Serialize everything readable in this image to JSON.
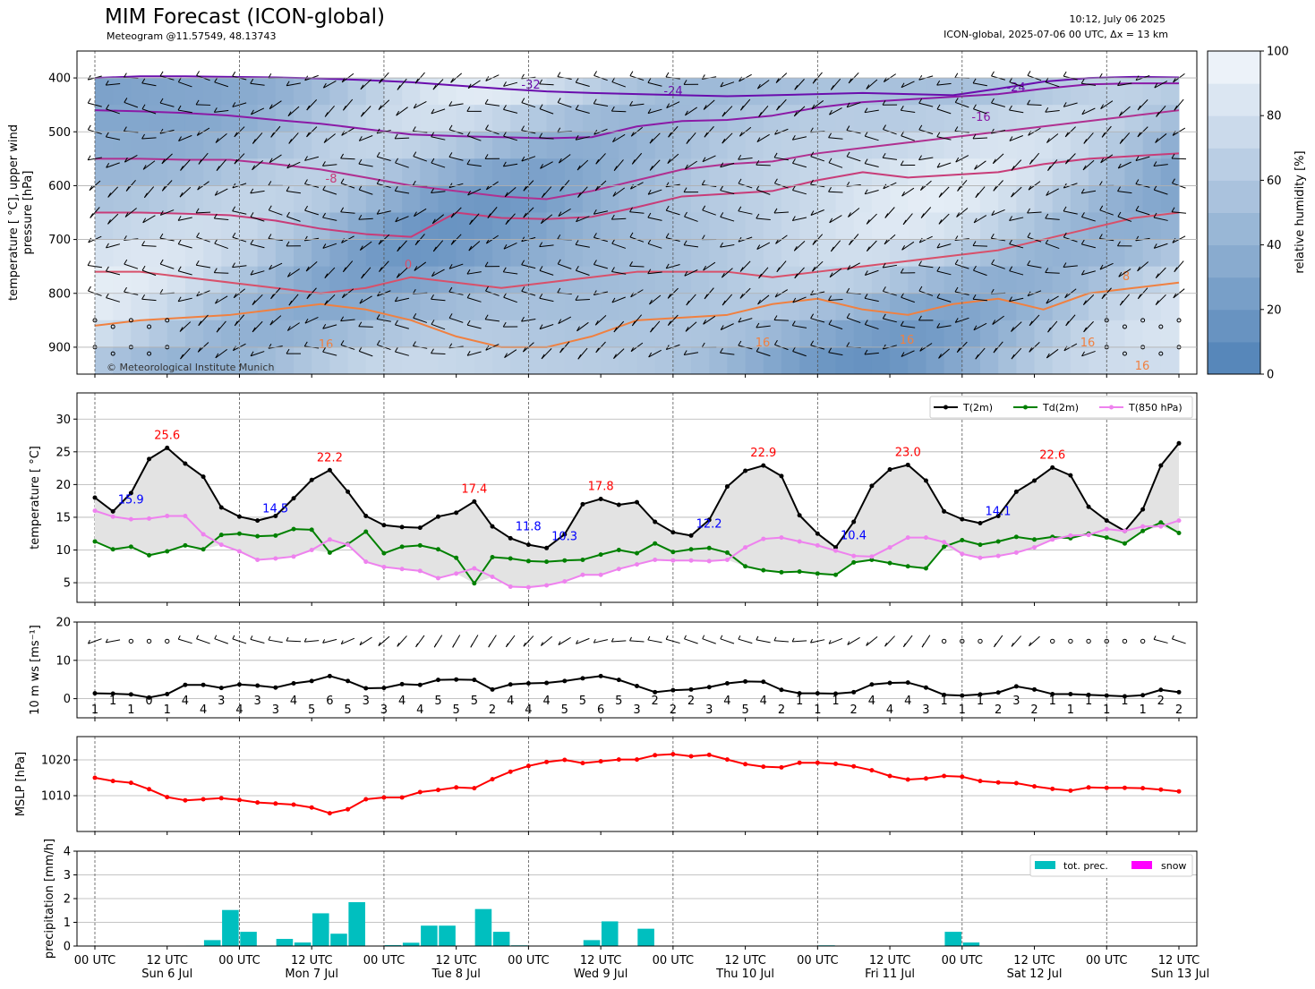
{
  "header": {
    "title": "MIM Forecast (ICON-global)",
    "subtitle": "Meteogram @11.57549, 48.13743",
    "run_time": "10:12, July 06 2025",
    "model_info": "ICON-global, 2025-07-06 00 UTC, Δx = 13 km",
    "copyright": "© Meteorological Institute Munich"
  },
  "colors": {
    "t2m": "#000000",
    "td2m": "#008000",
    "t850": "#ee82ee",
    "max_label": "#ff0000",
    "min_label": "#0000ff",
    "mslp": "#ff0000",
    "precip": "#00bfbf",
    "snow": "#ff00ff",
    "humidity_low": "#4f81b7",
    "humidity_high": "#f4f8fc",
    "shading": "#e3e3e3"
  },
  "x_axis": {
    "tick_labels": [
      "00 UTC",
      "12 UTC",
      "00 UTC",
      "12 UTC",
      "00 UTC",
      "12 UTC",
      "00 UTC",
      "12 UTC",
      "00 UTC",
      "12 UTC",
      "00 UTC",
      "12 UTC",
      "00 UTC",
      "12 UTC",
      "00 UTC",
      "12 UTC"
    ],
    "day_labels": [
      "Sun 6 Jul",
      "Mon 7 Jul",
      "Tue 8 Jul",
      "Wed 9 Jul",
      "Thu 10 Jul",
      "Fri 11 Jul",
      "Sat 12 Jul",
      "Sun 13 Jul"
    ],
    "range_hours": [
      0,
      180
    ],
    "step_hours": 3
  },
  "chart_data": [
    {
      "type": "heatmap",
      "name_note": "relative humidity with isotherms and upper wind barbs",
      "ylabel": "temperature [$^\\circ$C], upper wind\npressure [hPa]",
      "ylabel_lines": [
        "temperature [ °C], upper wind",
        "pressure [hPa]"
      ],
      "ylim": [
        950,
        350
      ],
      "y_ticks": [
        400,
        500,
        600,
        700,
        800,
        900
      ],
      "colorbar_label": "relative humidity [%]",
      "colorbar_ticks": [
        0,
        20,
        40,
        60,
        80,
        100
      ],
      "isotherm_labels": [
        "-32",
        "-24",
        "-24",
        "-16",
        "-8",
        "0",
        "8",
        "16",
        "16",
        "16",
        "16",
        "16"
      ],
      "isotherms": [
        {
          "temp": -32,
          "color": "#6a0dad",
          "pressure": [
            400,
            397,
            397,
            398,
            399,
            401,
            404,
            408,
            414,
            420,
            425,
            428,
            430,
            432,
            434,
            432,
            430,
            428,
            430,
            432,
            420,
            407,
            400,
            398,
            399
          ]
        },
        {
          "temp": -24,
          "color": "#8b1aa6",
          "pressure": [
            460,
            462,
            465,
            470,
            478,
            485,
            495,
            505,
            508,
            510,
            512,
            510,
            490,
            480,
            478,
            470,
            455,
            445,
            440,
            435,
            430,
            420,
            412,
            410,
            410
          ]
        },
        {
          "temp": -16,
          "color": "#b03090",
          "pressure": [
            550,
            550,
            552,
            552,
            560,
            570,
            585,
            600,
            610,
            620,
            625,
            610,
            590,
            570,
            560,
            555,
            540,
            530,
            520,
            510,
            500,
            490,
            480,
            470,
            460
          ]
        },
        {
          "temp": -8,
          "color": "#c83c78",
          "pressure": [
            650,
            650,
            652,
            655,
            665,
            680,
            690,
            695,
            650,
            660,
            662,
            658,
            640,
            620,
            615,
            610,
            590,
            575,
            585,
            580,
            575,
            560,
            550,
            545,
            540
          ]
        },
        {
          "temp": 0,
          "color": "#d8506a",
          "pressure": [
            760,
            760,
            770,
            780,
            790,
            800,
            790,
            770,
            780,
            790,
            780,
            770,
            760,
            760,
            760,
            770,
            760,
            750,
            740,
            730,
            720,
            700,
            680,
            660,
            650
          ]
        },
        {
          "temp": 8,
          "color": "#f08040",
          "pressure": [
            860,
            850,
            845,
            840,
            830,
            820,
            830,
            850,
            880,
            900,
            900,
            880,
            850,
            845,
            840,
            820,
            810,
            830,
            840,
            820,
            810,
            830,
            800,
            790,
            780
          ]
        }
      ]
    },
    {
      "type": "line",
      "ylabel": "temperature [$^\\circ$C]",
      "ylabel_text": "temperature [ °C]",
      "ylim": [
        2,
        34
      ],
      "y_ticks": [
        5,
        10,
        15,
        20,
        25,
        30
      ],
      "legend": [
        "T(2m)",
        "Td(2m)",
        "T(850 hPa)"
      ],
      "legend_position": "top-right",
      "x_hours": [
        0,
        3,
        6,
        9,
        12,
        15,
        18,
        21,
        24,
        27,
        30,
        33,
        36,
        39,
        42,
        45,
        48,
        51,
        54,
        57,
        60,
        63,
        66,
        69,
        72,
        75,
        78,
        81,
        84,
        87,
        90,
        93,
        96,
        99,
        102,
        105,
        108,
        111,
        114,
        117,
        120,
        123,
        126,
        129,
        132,
        135,
        138,
        141,
        144,
        147,
        150,
        153,
        156,
        159,
        162,
        165,
        168,
        171,
        174,
        177,
        180
      ],
      "series": [
        {
          "name": "T(2m)",
          "values": [
            18.0,
            15.9,
            18.7,
            23.9,
            25.6,
            23.2,
            21.2,
            16.5,
            15.1,
            14.5,
            15.2,
            17.9,
            20.7,
            22.2,
            18.9,
            15.2,
            13.8,
            13.5,
            13.4,
            15.1,
            15.7,
            17.4,
            13.6,
            11.8,
            10.8,
            10.3,
            12.4,
            17.0,
            17.8,
            16.9,
            17.3,
            14.3,
            12.7,
            12.2,
            14.6,
            19.7,
            22.1,
            22.9,
            21.3,
            15.3,
            12.5,
            10.4,
            14.3,
            19.8,
            22.3,
            23.0,
            20.6,
            15.9,
            14.7,
            14.1,
            15.2,
            18.9,
            20.6,
            22.6,
            21.4,
            16.6,
            14.5,
            12.9,
            16.2,
            22.9,
            26.3
          ]
        },
        {
          "name": "Td(2m)",
          "values": [
            11.3,
            10.1,
            10.5,
            9.2,
            9.8,
            10.7,
            10.1,
            12.3,
            12.5,
            12.1,
            12.2,
            13.2,
            13.1,
            9.6,
            10.9,
            12.8,
            9.5,
            10.5,
            10.7,
            10.1,
            8.8,
            4.9,
            8.9,
            8.7,
            8.3,
            8.2,
            8.4,
            8.5,
            9.3,
            10.0,
            9.5,
            11.0,
            9.7,
            10.1,
            10.3,
            9.6,
            7.5,
            6.9,
            6.6,
            6.7,
            6.4,
            6.2,
            8.1,
            8.5,
            8.0,
            7.5,
            7.2,
            10.5,
            11.5,
            10.8,
            11.3,
            12.0,
            11.6,
            12.0,
            11.8,
            12.5,
            11.9,
            11.0,
            12.9,
            14.2,
            12.6
          ]
        },
        {
          "name": "T(850 hPa)",
          "values": [
            16.0,
            15.1,
            14.7,
            14.8,
            15.2,
            15.2,
            12.4,
            10.8,
            9.8,
            8.5,
            8.7,
            9.0,
            10.0,
            11.6,
            10.8,
            8.2,
            7.4,
            7.1,
            6.8,
            5.7,
            6.4,
            7.2,
            5.9,
            4.4,
            4.3,
            4.6,
            5.2,
            6.2,
            6.2,
            7.1,
            7.8,
            8.5,
            8.4,
            8.4,
            8.3,
            8.5,
            10.4,
            11.7,
            11.9,
            11.3,
            10.7,
            9.9,
            9.1,
            9.0,
            10.4,
            11.9,
            11.9,
            11.2,
            9.4,
            8.8,
            9.1,
            9.6,
            10.4,
            11.6,
            12.2,
            12.3,
            13.2,
            12.9,
            13.6,
            13.6,
            14.5
          ]
        }
      ],
      "annotations": [
        {
          "text": "25.6",
          "kind": "max",
          "x_hour": 12,
          "value": 25.6
        },
        {
          "text": "22.2",
          "kind": "max",
          "x_hour": 39,
          "value": 22.2
        },
        {
          "text": "17.4",
          "kind": "max",
          "x_hour": 63,
          "value": 17.4
        },
        {
          "text": "17.8",
          "kind": "max",
          "x_hour": 84,
          "value": 17.8
        },
        {
          "text": "22.9",
          "kind": "max",
          "x_hour": 111,
          "value": 22.9
        },
        {
          "text": "23.0",
          "kind": "max",
          "x_hour": 135,
          "value": 23.0
        },
        {
          "text": "22.6",
          "kind": "max",
          "x_hour": 159,
          "value": 22.6
        },
        {
          "text": "15.9",
          "kind": "min",
          "x_hour": 3,
          "value": 15.9
        },
        {
          "text": "14.5",
          "kind": "min",
          "x_hour": 27,
          "value": 14.5
        },
        {
          "text": "11.8",
          "kind": "min",
          "x_hour": 69,
          "value": 11.8
        },
        {
          "text": "10.3",
          "kind": "min",
          "x_hour": 75,
          "value": 10.3
        },
        {
          "text": "12.2",
          "kind": "min",
          "x_hour": 99,
          "value": 12.2
        },
        {
          "text": "10.4",
          "kind": "min",
          "x_hour": 123,
          "value": 10.4
        },
        {
          "text": "14.1",
          "kind": "min",
          "x_hour": 147,
          "value": 14.1
        }
      ]
    },
    {
      "type": "line",
      "ylabel": "10 m ws [ms$^{-1}$]",
      "ylabel_text": "10 m ws [ms⁻¹]",
      "ylim": [
        -5,
        20
      ],
      "y_ticks": [
        0,
        10,
        20
      ],
      "x_hours": [
        0,
        3,
        6,
        9,
        12,
        15,
        18,
        21,
        24,
        27,
        30,
        33,
        36,
        39,
        42,
        45,
        48,
        51,
        54,
        57,
        60,
        63,
        66,
        69,
        72,
        75,
        78,
        81,
        84,
        87,
        90,
        93,
        96,
        99,
        102,
        105,
        108,
        111,
        114,
        117,
        120,
        123,
        126,
        129,
        132,
        135,
        138,
        141,
        144,
        147,
        150,
        153,
        156,
        159,
        162,
        165,
        168,
        171,
        174,
        177,
        180
      ],
      "series": [
        {
          "name": "10 m ws",
          "values": [
            1.4,
            1.3,
            1.1,
            0.3,
            1.2,
            3.6,
            3.6,
            2.8,
            3.7,
            3.4,
            2.9,
            4.0,
            4.6,
            5.9,
            4.6,
            2.7,
            2.8,
            3.8,
            3.6,
            4.9,
            5.0,
            4.9,
            2.4,
            3.7,
            4.0,
            4.1,
            4.6,
            5.3,
            5.9,
            4.9,
            3.3,
            1.7,
            2.2,
            2.4,
            3.0,
            4.0,
            4.5,
            4.4,
            2.3,
            1.4,
            1.4,
            1.3,
            1.7,
            3.7,
            4.1,
            4.2,
            2.9,
            1.0,
            0.8,
            1.1,
            1.6,
            3.2,
            2.4,
            1.2,
            1.2,
            1.0,
            0.8,
            0.6,
            0.9,
            2.3,
            1.7
          ]
        }
      ],
      "value_labels": [
        "1",
        "1",
        "1",
        "0",
        "1",
        "4",
        "4",
        "3",
        "4",
        "3",
        "3",
        "4",
        "5",
        "6",
        "5",
        "3",
        "3",
        "4",
        "4",
        "5",
        "5",
        "5",
        "2",
        "4",
        "4",
        "4",
        "5",
        "5",
        "6",
        "5",
        "3",
        "2",
        "2",
        "2",
        "3",
        "4",
        "5",
        "4",
        "2",
        "1",
        "1",
        "1",
        "2",
        "4",
        "4",
        "4",
        "3",
        "1",
        "1",
        "1",
        "2",
        "3",
        "2",
        "1",
        "1",
        "1",
        "1",
        "1",
        "1",
        "2",
        "2"
      ]
    },
    {
      "type": "line",
      "ylabel": "MSLP [hPa]",
      "ylim": [
        1000,
        1026.5
      ],
      "y_ticks": [
        1010,
        1020
      ],
      "x_hours": [
        0,
        3,
        6,
        9,
        12,
        15,
        18,
        21,
        24,
        27,
        30,
        33,
        36,
        39,
        42,
        45,
        48,
        51,
        54,
        57,
        60,
        63,
        66,
        69,
        72,
        75,
        78,
        81,
        84,
        87,
        90,
        93,
        96,
        99,
        102,
        105,
        108,
        111,
        114,
        117,
        120,
        123,
        126,
        129,
        132,
        135,
        138,
        141,
        144,
        147,
        150,
        153,
        156,
        159,
        162,
        165,
        168,
        171,
        174,
        177,
        180
      ],
      "series": [
        {
          "name": "MSLP",
          "values": [
            1015.0,
            1014.1,
            1013.6,
            1011.8,
            1009.6,
            1008.7,
            1009.0,
            1009.3,
            1008.8,
            1008.1,
            1007.8,
            1007.5,
            1006.7,
            1005.1,
            1006.2,
            1009.0,
            1009.5,
            1009.5,
            1011.0,
            1011.6,
            1012.3,
            1012.1,
            1014.6,
            1016.7,
            1018.3,
            1019.4,
            1020.0,
            1019.1,
            1019.6,
            1020.1,
            1020.1,
            1021.3,
            1021.6,
            1021.0,
            1021.4,
            1020.1,
            1018.8,
            1018.1,
            1017.9,
            1019.2,
            1019.2,
            1018.9,
            1018.2,
            1017.1,
            1015.5,
            1014.5,
            1014.8,
            1015.5,
            1015.3,
            1014.1,
            1013.7,
            1013.5,
            1012.6,
            1011.9,
            1011.4,
            1012.3,
            1012.2,
            1012.2,
            1012.1,
            1011.7,
            1011.2
          ]
        }
      ]
    },
    {
      "type": "bar",
      "ylabel": "precipitation [mm/h]",
      "ylim": [
        0,
        4
      ],
      "y_ticks": [
        0,
        1,
        2,
        3,
        4
      ],
      "legend": [
        "tot. prec.",
        "snow"
      ],
      "legend_position": "top-right",
      "x_hours": [
        0,
        3,
        6,
        9,
        12,
        15,
        18,
        21,
        24,
        27,
        30,
        33,
        36,
        39,
        42,
        45,
        48,
        51,
        54,
        57,
        60,
        63,
        66,
        69,
        72,
        75,
        78,
        81,
        84,
        87,
        90,
        93,
        96,
        99,
        102,
        105,
        108,
        111,
        114,
        117,
        120,
        123,
        126,
        129,
        132,
        135,
        138,
        141,
        144,
        147,
        150,
        153,
        156,
        159,
        162,
        165,
        168,
        171,
        174,
        177,
        180
      ],
      "series": [
        {
          "name": "tot. prec.",
          "values": [
            0,
            0,
            0,
            0,
            0,
            0.02,
            0.25,
            1.52,
            0.6,
            0.02,
            0.3,
            0.15,
            1.38,
            0.52,
            1.85,
            0,
            0.04,
            0.14,
            0.86,
            0.86,
            0,
            1.56,
            0.6,
            0.03,
            0,
            0,
            0,
            0.25,
            1.04,
            0,
            0.73,
            0,
            0,
            0,
            0,
            0,
            0,
            0,
            0,
            0,
            0.03,
            0,
            0,
            0,
            0,
            0,
            0,
            0.6,
            0.15,
            0,
            0,
            0,
            0,
            0,
            0,
            0,
            0,
            0,
            0,
            0,
            0
          ]
        },
        {
          "name": "snow",
          "values": [
            0,
            0,
            0,
            0,
            0,
            0,
            0,
            0,
            0,
            0,
            0,
            0,
            0,
            0,
            0,
            0,
            0,
            0,
            0,
            0,
            0,
            0,
            0,
            0,
            0,
            0,
            0,
            0,
            0,
            0,
            0,
            0,
            0,
            0,
            0,
            0,
            0,
            0,
            0,
            0,
            0,
            0,
            0,
            0,
            0,
            0,
            0,
            0,
            0,
            0,
            0,
            0,
            0,
            0,
            0,
            0,
            0,
            0,
            0,
            0,
            0
          ]
        }
      ]
    }
  ]
}
